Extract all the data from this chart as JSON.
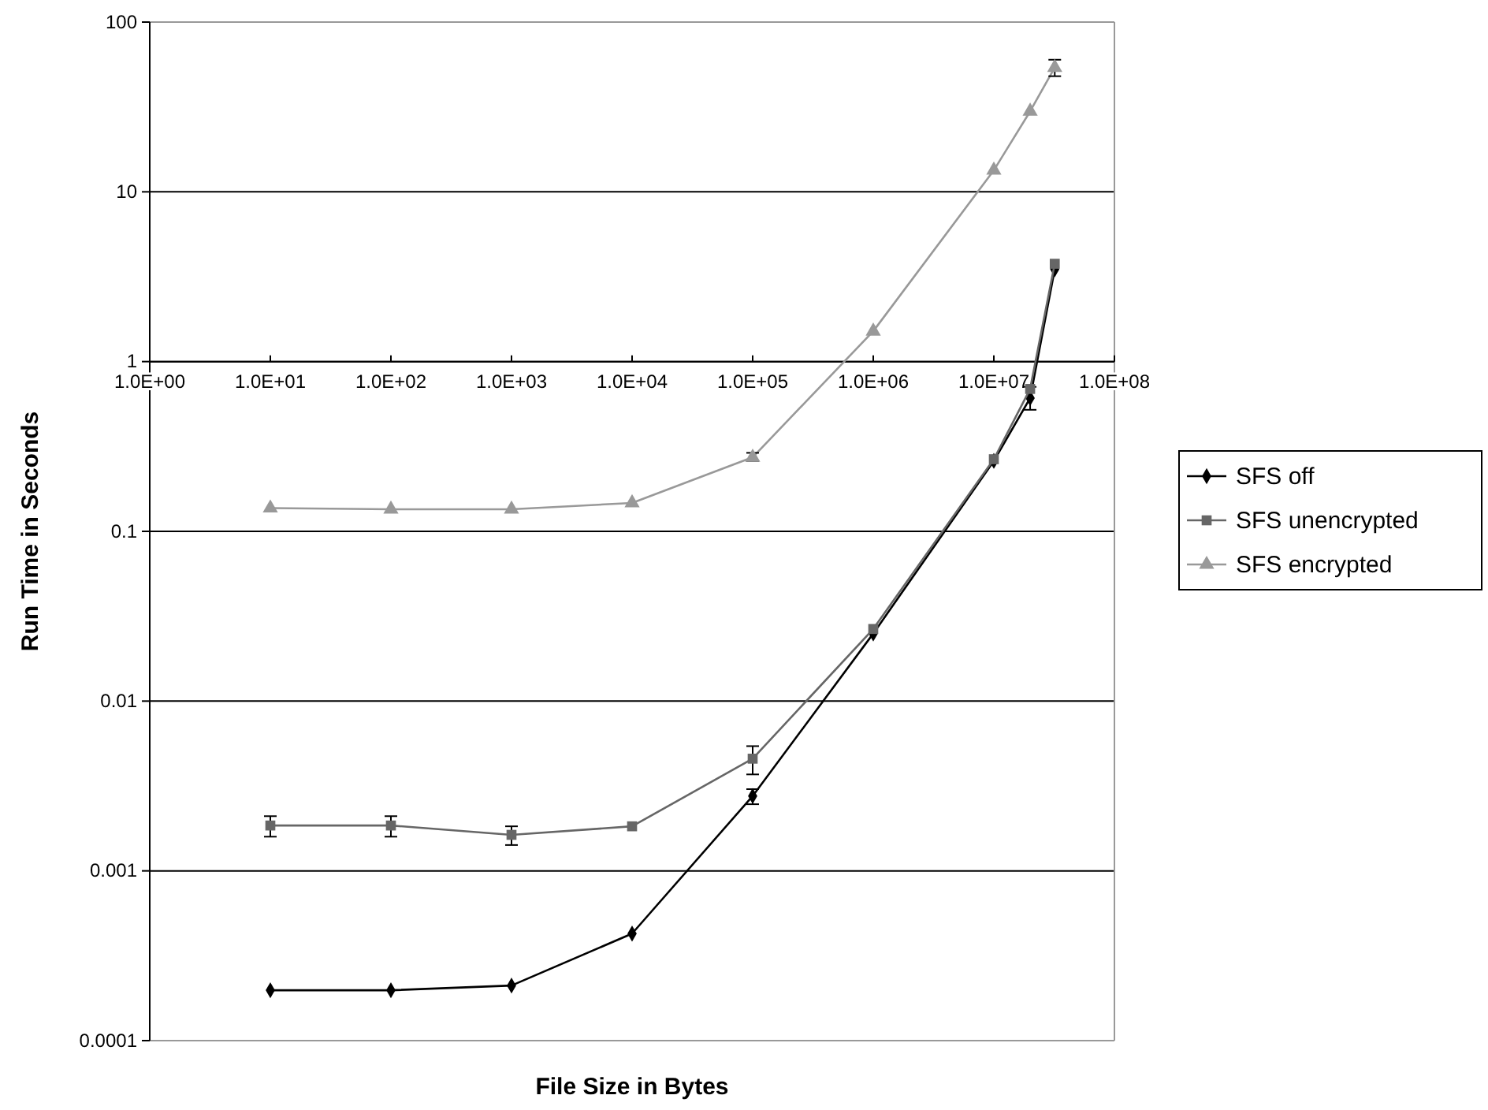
{
  "chart_data": {
    "type": "line",
    "xlabel": "File Size in Bytes",
    "ylabel": "Run Time in Seconds",
    "log": "xy",
    "grid": "y",
    "legend": "right",
    "xlim": [
      1,
      100000000
    ],
    "xticks": [
      {
        "value": 1,
        "label": "1.0E+00"
      },
      {
        "value": 10,
        "label": "1.0E+01"
      },
      {
        "value": 100,
        "label": "1.0E+02"
      },
      {
        "value": 1000,
        "label": "1.0E+03"
      },
      {
        "value": 10000,
        "label": "1.0E+04"
      },
      {
        "value": 100000,
        "label": "1.0E+05"
      },
      {
        "value": 1000000,
        "label": "1.0E+06"
      },
      {
        "value": 10000000,
        "label": "1.0E+07"
      },
      {
        "value": 100000000,
        "label": "1.0E+08"
      }
    ],
    "ylim": [
      0.0001,
      100
    ],
    "yticks": [
      0.0001,
      0.001,
      0.01,
      0.1,
      1,
      10,
      100
    ],
    "x": [
      10,
      100,
      1000,
      10000,
      100000,
      1000000,
      10000000,
      20000000,
      32000000
    ],
    "series": [
      {
        "name": "SFS off",
        "color": "#000000",
        "marker": "diamond",
        "values": [
          0.000198,
          0.000198,
          0.000211,
          0.000427,
          0.00276,
          0.025,
          0.26,
          0.61,
          3.5
        ],
        "errors": [
          null,
          null,
          null,
          null,
          [
            0.00247,
            0.00303
          ],
          null,
          null,
          [
            0.52,
            0.71
          ],
          null
        ]
      },
      {
        "name": "SFS unencrypted",
        "color": "#666666",
        "marker": "square",
        "values": [
          0.00185,
          0.00185,
          0.00163,
          0.00183,
          0.00458,
          0.0266,
          0.266,
          0.69,
          3.77
        ],
        "errors": [
          [
            0.00159,
            0.0021
          ],
          [
            0.00159,
            0.0021
          ],
          [
            0.00142,
            0.00183
          ],
          null,
          [
            0.0037,
            0.00543
          ],
          null,
          null,
          null,
          null
        ]
      },
      {
        "name": "SFS encrypted",
        "color": "#999999",
        "marker": "triangle",
        "values": [
          0.137,
          0.135,
          0.135,
          0.147,
          0.273,
          1.51,
          13.4,
          29.8,
          54
        ],
        "errors": [
          null,
          null,
          null,
          null,
          [
            0.26,
            0.29
          ],
          null,
          null,
          null,
          [
            48,
            60
          ]
        ]
      }
    ]
  }
}
